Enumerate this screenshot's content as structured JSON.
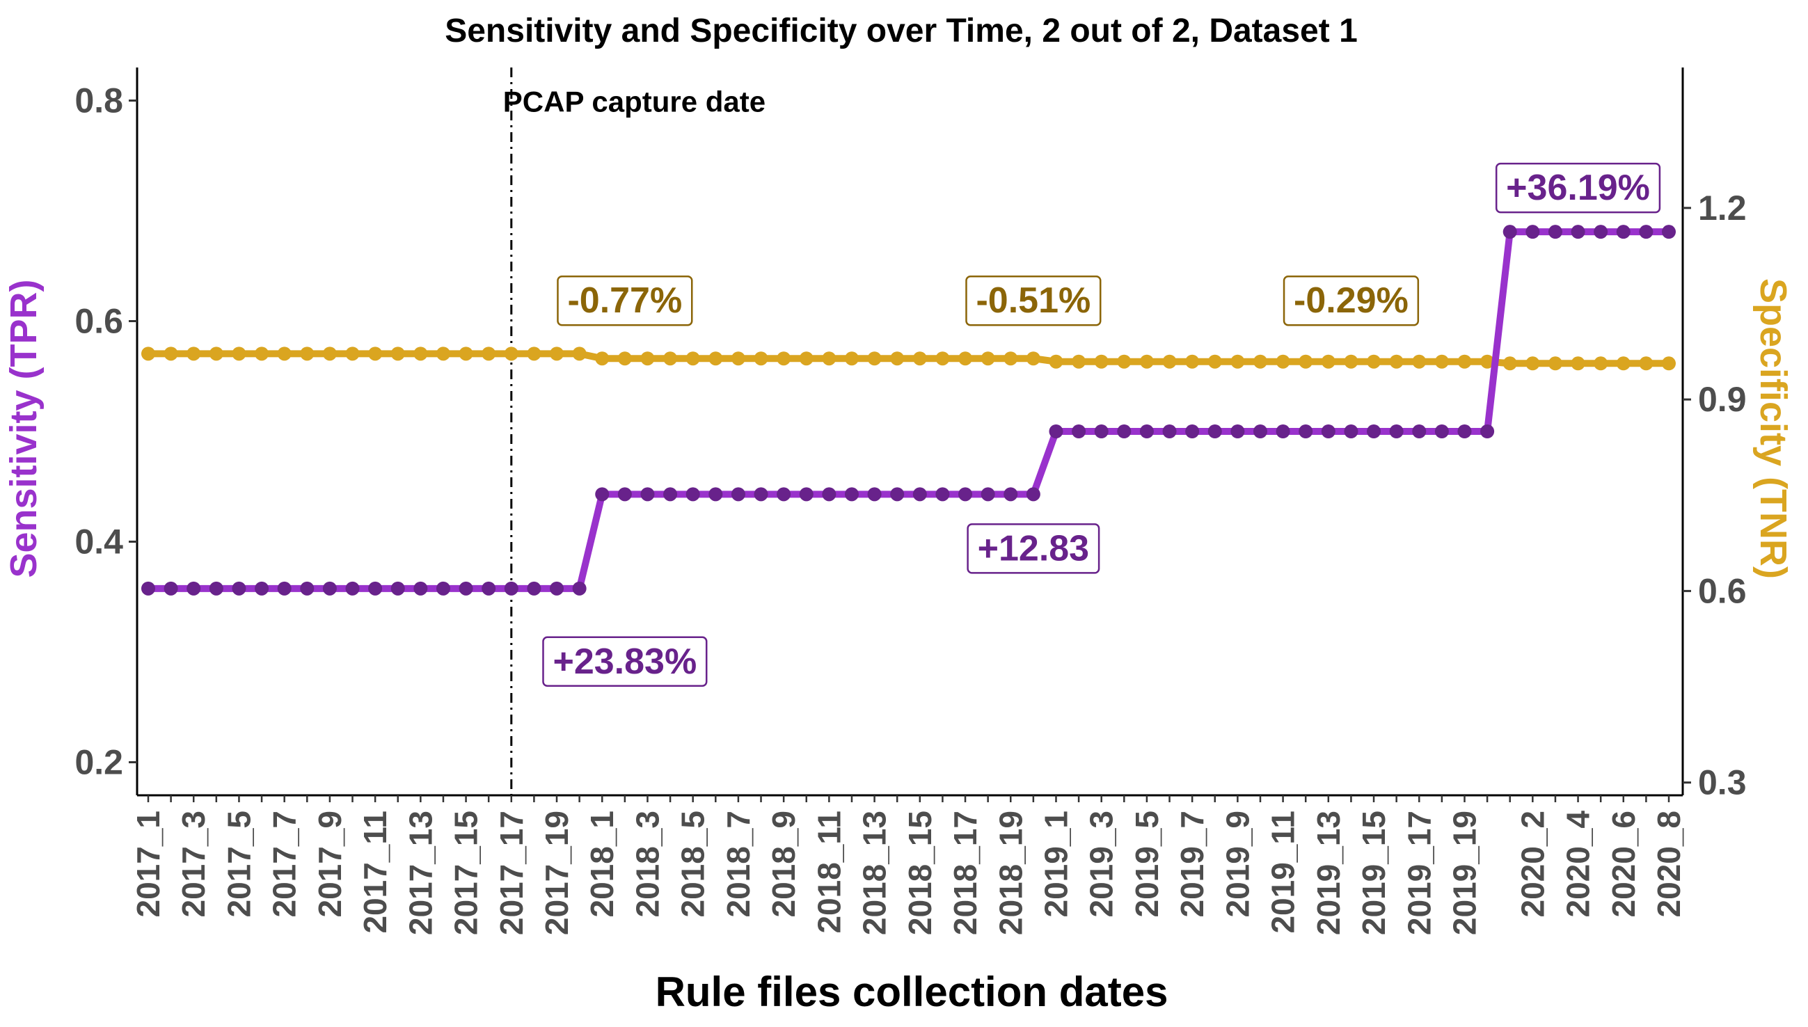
{
  "chart_data": {
    "type": "line",
    "title": "Sensitivity and Specificity over Time, 2 out of 2, Dataset 1",
    "xlabel": "Rule files collection dates",
    "ylabel_left": "Sensitivity (TPR)",
    "ylabel_right": "Specificity (TNR)",
    "ylim_left": [
      0.17,
      0.83
    ],
    "ylim_right": [
      0.28,
      1.42
    ],
    "yticks_left": [
      0.2,
      0.4,
      0.6,
      0.8
    ],
    "yticks_right": [
      0.3,
      0.6,
      0.9,
      1.2
    ],
    "x_tick_labels": [
      "2017_1",
      "2017_3",
      "2017_5",
      "2017_7",
      "2017_9",
      "2017_11",
      "2017_13",
      "2017_15",
      "2017_17",
      "2017_19",
      "2018_1",
      "2018_3",
      "2018_5",
      "2018_7",
      "2018_9",
      "2018_11",
      "2018_13",
      "2018_15",
      "2018_17",
      "2018_19",
      "2019_1",
      "2019_3",
      "2019_5",
      "2019_7",
      "2019_9",
      "2019_11",
      "2019_13",
      "2019_15",
      "2019_17",
      "2019_19",
      "2020_2",
      "2020_4",
      "2020_6",
      "2020_8"
    ],
    "x_points": [
      "2017_1",
      "2017_2",
      "2017_3",
      "2017_4",
      "2017_5",
      "2017_6",
      "2017_7",
      "2017_8",
      "2017_9",
      "2017_10",
      "2017_11",
      "2017_12",
      "2017_13",
      "2017_14",
      "2017_15",
      "2017_16",
      "2017_17",
      "2017_18",
      "2017_19",
      "2017_20",
      "2018_1",
      "2018_2",
      "2018_3",
      "2018_4",
      "2018_5",
      "2018_6",
      "2018_7",
      "2018_8",
      "2018_9",
      "2018_10",
      "2018_11",
      "2018_12",
      "2018_13",
      "2018_14",
      "2018_15",
      "2018_16",
      "2018_17",
      "2018_18",
      "2018_19",
      "2018_20",
      "2019_1",
      "2019_2",
      "2019_3",
      "2019_4",
      "2019_5",
      "2019_6",
      "2019_7",
      "2019_8",
      "2019_9",
      "2019_10",
      "2019_11",
      "2019_12",
      "2019_13",
      "2019_14",
      "2019_15",
      "2019_16",
      "2019_17",
      "2019_18",
      "2019_19",
      "2019_20",
      "2020_1",
      "2020_2",
      "2020_3",
      "2020_4",
      "2020_5",
      "2020_6",
      "2020_7",
      "2020_8"
    ],
    "series": [
      {
        "name": "Sensitivity (TPR)",
        "axis": "left",
        "color": "#9932cc",
        "point_color": "#68228b",
        "values": [
          0.3575,
          0.3575,
          0.3575,
          0.3575,
          0.3575,
          0.3575,
          0.3575,
          0.3575,
          0.3575,
          0.3575,
          0.3575,
          0.3575,
          0.3575,
          0.3575,
          0.3575,
          0.3575,
          0.3575,
          0.3575,
          0.3575,
          0.3575,
          0.443,
          0.443,
          0.443,
          0.443,
          0.443,
          0.443,
          0.443,
          0.443,
          0.443,
          0.443,
          0.443,
          0.443,
          0.443,
          0.443,
          0.443,
          0.443,
          0.443,
          0.443,
          0.443,
          0.443,
          0.5,
          0.5,
          0.5,
          0.5,
          0.5,
          0.5,
          0.5,
          0.5,
          0.5,
          0.5,
          0.5,
          0.5,
          0.5,
          0.5,
          0.5,
          0.5,
          0.5,
          0.5,
          0.5,
          0.5,
          0.681,
          0.681,
          0.681,
          0.681,
          0.681,
          0.681,
          0.681,
          0.681
        ]
      },
      {
        "name": "Specificity (TNR)",
        "axis": "right",
        "color": "#daa520",
        "point_color": "#daa520",
        "values": [
          0.9717,
          0.9717,
          0.9717,
          0.9717,
          0.9717,
          0.9717,
          0.9717,
          0.9717,
          0.9717,
          0.9717,
          0.9717,
          0.9717,
          0.9717,
          0.9717,
          0.9717,
          0.9717,
          0.9717,
          0.9717,
          0.9717,
          0.9717,
          0.9642,
          0.9642,
          0.9642,
          0.9642,
          0.9642,
          0.9642,
          0.9642,
          0.9642,
          0.9642,
          0.9642,
          0.9642,
          0.9642,
          0.9642,
          0.9642,
          0.9642,
          0.9642,
          0.9642,
          0.9642,
          0.9642,
          0.9642,
          0.9593,
          0.9593,
          0.9593,
          0.9593,
          0.9593,
          0.9593,
          0.9593,
          0.9593,
          0.9593,
          0.9593,
          0.9593,
          0.9593,
          0.9593,
          0.9593,
          0.9593,
          0.9593,
          0.9593,
          0.9593,
          0.9593,
          0.9593,
          0.9565,
          0.9565,
          0.9565,
          0.9565,
          0.9565,
          0.9565,
          0.9565,
          0.9565
        ]
      }
    ],
    "vline": {
      "x": "2017_17",
      "label": "PCAP capture date"
    },
    "annotations": [
      {
        "text": "-0.77%",
        "x": "2018_2",
        "y": 0.6191,
        "axis": "left",
        "color": "#8b6508"
      },
      {
        "text": "-0.51%",
        "x": "2018_20",
        "y": 0.6191,
        "axis": "left",
        "color": "#8b6508"
      },
      {
        "text": "-0.29%",
        "x": "2019_14",
        "y": 0.6191,
        "axis": "left",
        "color": "#8b6508"
      },
      {
        "text": "+23.83%",
        "x": "2018_2",
        "y": 0.2919,
        "axis": "left",
        "color": "#68228b"
      },
      {
        "text": "+12.83",
        "x": "2018_20",
        "y": 0.3944,
        "axis": "left",
        "color": "#68228b"
      },
      {
        "text": "+36.19%",
        "x": "2020_4",
        "y": 0.7214,
        "axis": "left",
        "color": "#68228b"
      }
    ],
    "grid": false,
    "legend": "none"
  }
}
